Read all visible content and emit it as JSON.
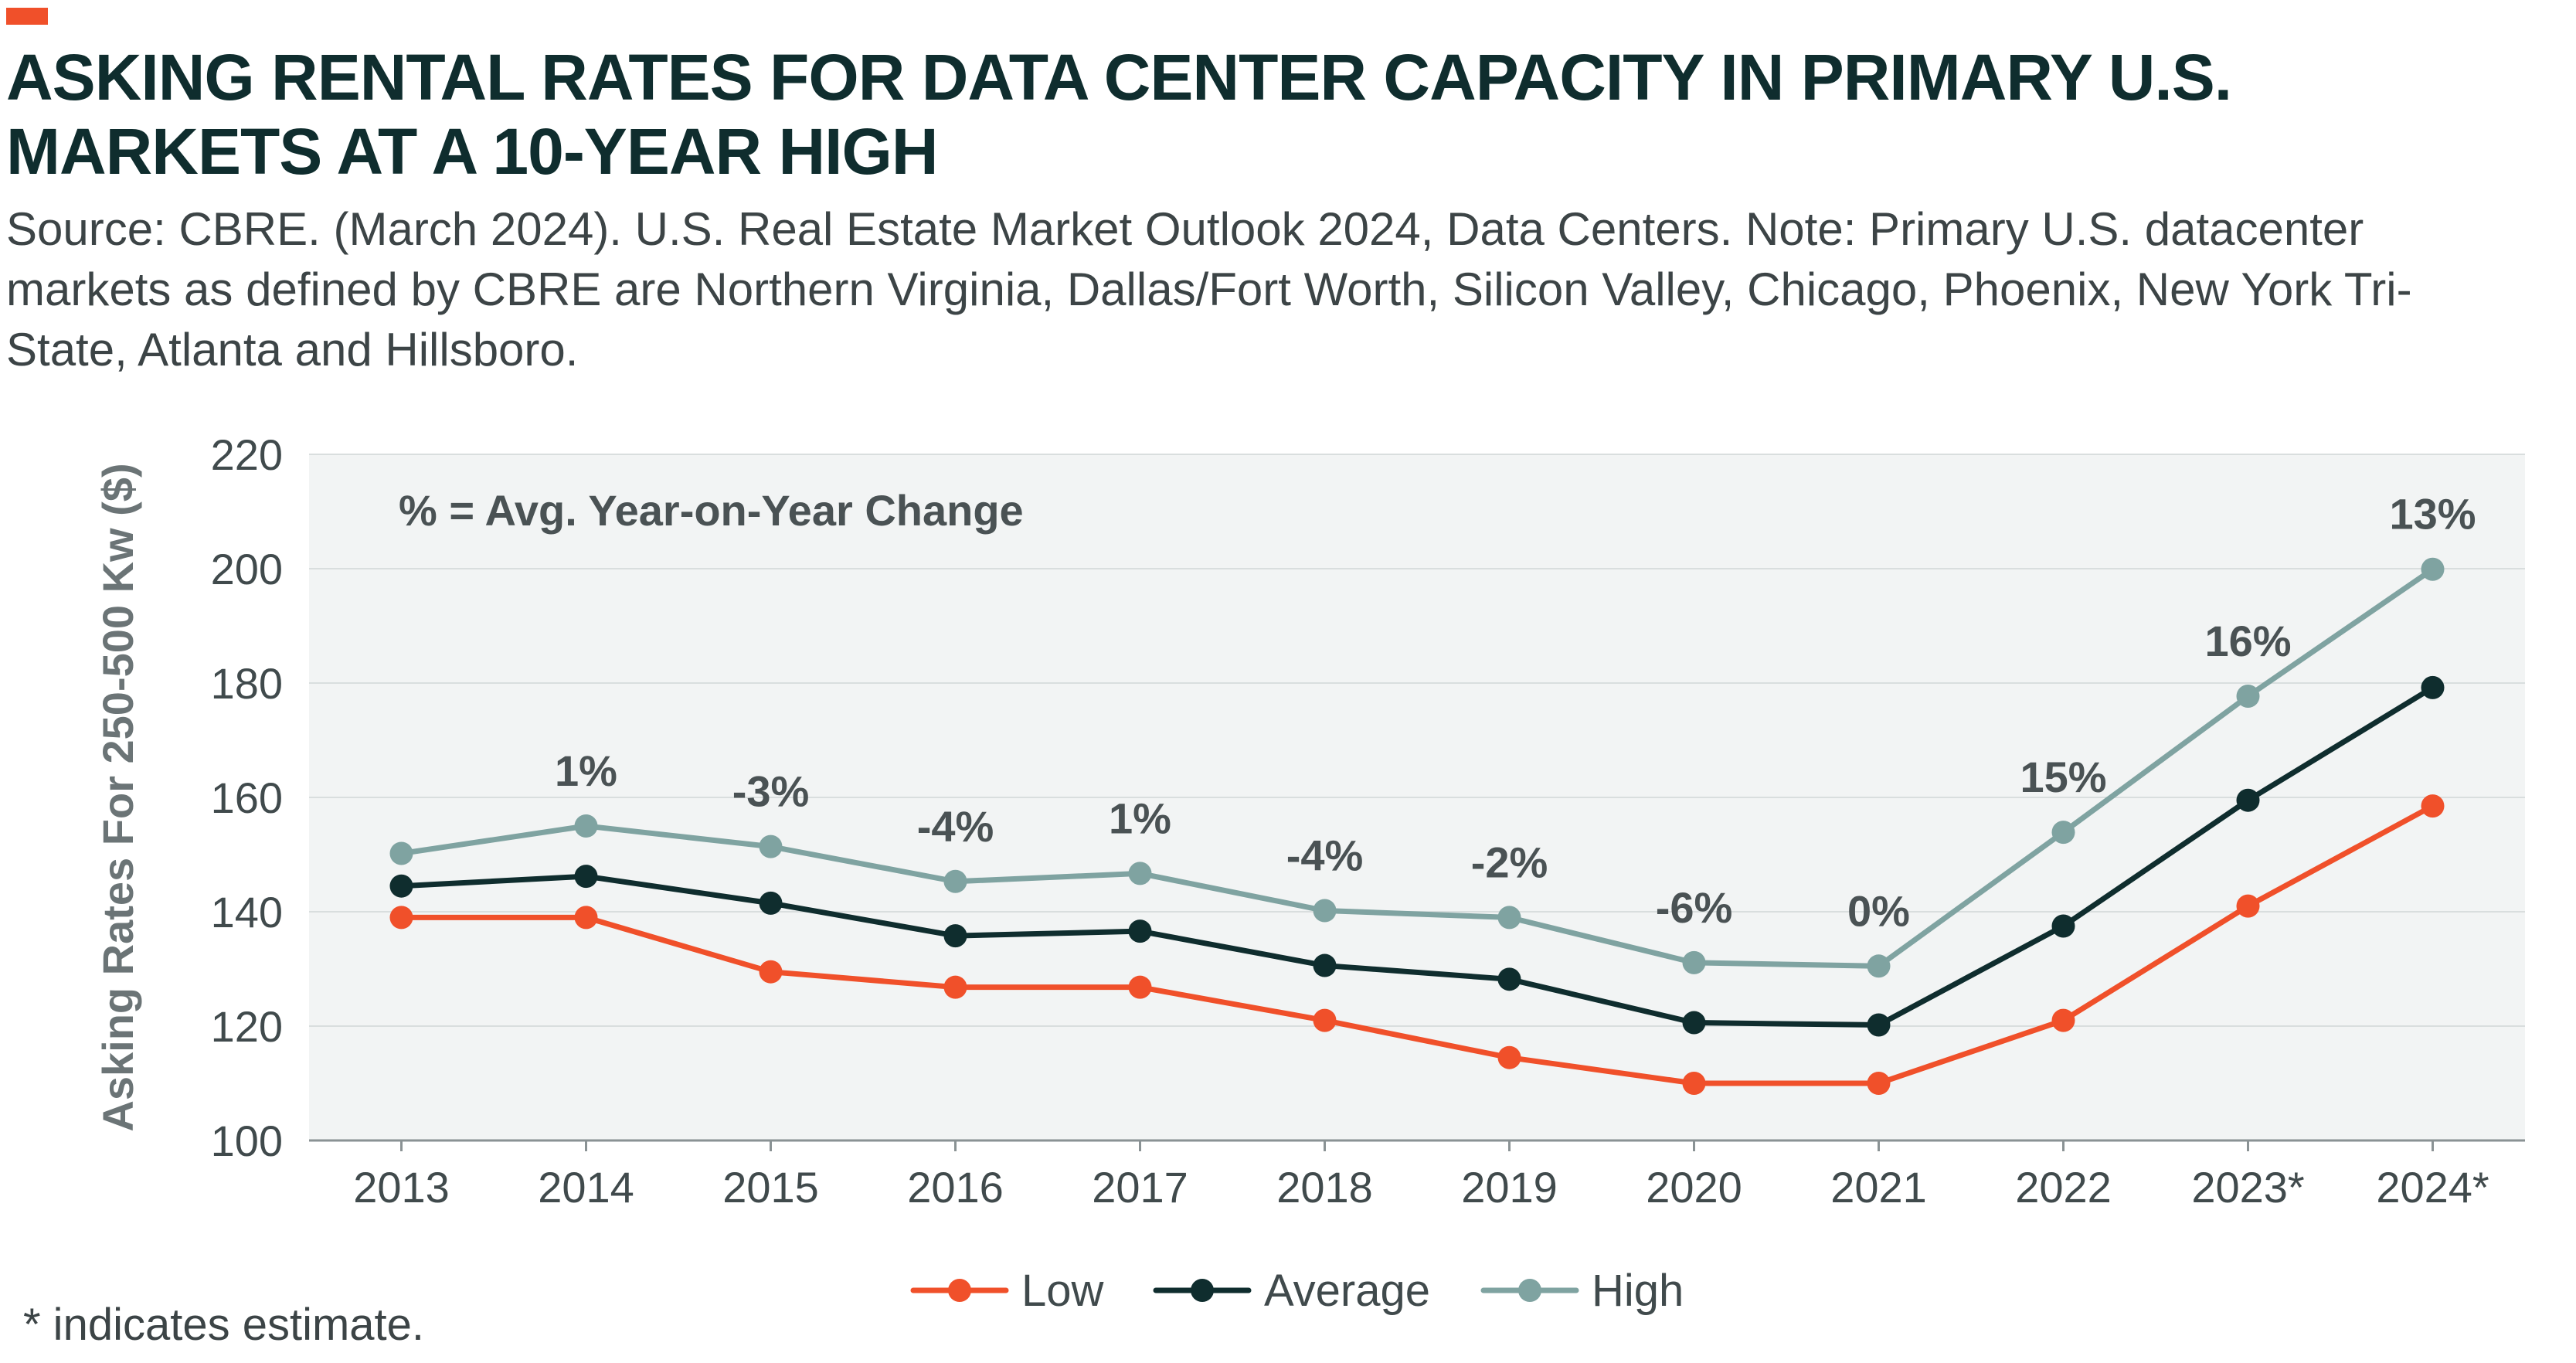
{
  "header": {
    "title": "ASKING RENTAL RATES FOR DATA CENTER CAPACITY IN PRIMARY U.S. MARKETS AT A 10-YEAR HIGH",
    "subtitle": "Source: CBRE. (March 2024). U.S. Real Estate Market Outlook 2024, Data Centers. Note: Primary U.S. datacenter markets as defined by CBRE are Northern Virginia, Dallas/Fort Worth, Silicon Valley, Chicago, Phoenix, New York Tri-State, Atlanta and Hillsboro."
  },
  "footnote": "* indicates estimate.",
  "colors": {
    "accent": "#F0502A",
    "low": "#F0502A",
    "average": "#0F2D2E",
    "high": "#7FA3A1",
    "plot_background": "#F2F4F4",
    "grid": "#D9DEDE"
  },
  "chart_data": {
    "type": "line",
    "categories": [
      "2013",
      "2014",
      "2015",
      "2016",
      "2017",
      "2018",
      "2019",
      "2020",
      "2021",
      "2022",
      "2023*",
      "2024*"
    ],
    "series": [
      {
        "name": "Low",
        "color": "#F0502A",
        "values": [
          139,
          139,
          129.5,
          126.8,
          126.8,
          121,
          114.5,
          110,
          110,
          121,
          141,
          158.5
        ]
      },
      {
        "name": "Average",
        "color": "#0F2D2E",
        "values": [
          144.5,
          146.2,
          141.5,
          135.8,
          136.6,
          130.6,
          128.2,
          120.6,
          120.2,
          137.5,
          159.5,
          179.2
        ]
      },
      {
        "name": "High",
        "color": "#7FA3A1",
        "values": [
          150.2,
          155,
          151.4,
          145.3,
          146.7,
          140.2,
          139,
          131.1,
          130.5,
          153.9,
          177.7,
          199.9
        ]
      }
    ],
    "annotations": [
      "",
      "1%",
      "-3%",
      "-4%",
      "1%",
      "-4%",
      "-2%",
      "-6%",
      "0%",
      "15%",
      "16%",
      "13%"
    ],
    "annotation_series": "High",
    "note": "% = Avg. Year-on-Year Change",
    "ylabel": "Asking Rates For 250-500 Kw ($)",
    "xlabel": "",
    "ylim": [
      100,
      220
    ],
    "yticks": [
      100,
      120,
      140,
      160,
      180,
      200,
      220
    ],
    "grid": true,
    "legend_position": "bottom-center"
  }
}
